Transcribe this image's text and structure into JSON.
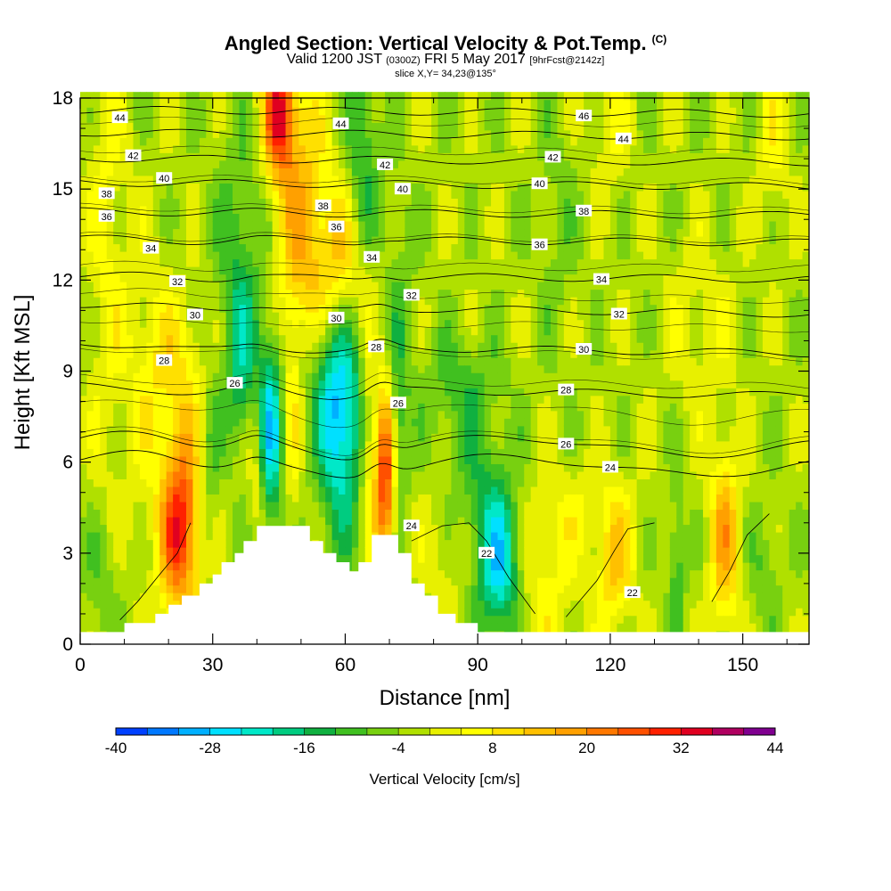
{
  "title": {
    "main": "Angled Section: Vertical Velocity & Pot.Temp.",
    "unit_tag": "(C)",
    "valid_prefix": "Valid 1200 JST",
    "valid_utc": "(0300Z)",
    "valid_date": "FRI 5 May 2017",
    "forecast": "[9hrFcst@2142z]",
    "slice": "slice X,Y= 34,23@135°"
  },
  "chart_data": {
    "type": "heatmap",
    "xlabel": "Distance [nm]",
    "ylabel": "Height [Kft MSL]",
    "xlim": [
      0,
      165
    ],
    "ylim": [
      0,
      18
    ],
    "x_ticks": [
      "0",
      "30",
      "60",
      "90",
      "120",
      "150"
    ],
    "y_ticks": [
      "0",
      "3",
      "6",
      "9",
      "12",
      "15",
      "18"
    ],
    "grid": false,
    "colorbar": {
      "title": "Vertical Velocity [cm/s]",
      "placement": "bottom",
      "tick_labels": [
        "-40",
        "-28",
        "-16",
        "-4",
        "8",
        "20",
        "32",
        "44"
      ],
      "levels": [
        -40,
        -36,
        -32,
        -28,
        -24,
        -20,
        -16,
        -12,
        -8,
        -4,
        0,
        4,
        8,
        12,
        16,
        20,
        24,
        28,
        32,
        36,
        40,
        44
      ],
      "colors": [
        "#0000ff",
        "#0040ff",
        "#0078ff",
        "#00b0ff",
        "#00e0ff",
        "#00e8c8",
        "#00cc80",
        "#10b040",
        "#40c020",
        "#78d010",
        "#b0e000",
        "#e8f000",
        "#ffff00",
        "#ffe000",
        "#ffc000",
        "#ffa000",
        "#ff7800",
        "#ff5000",
        "#ff2000",
        "#e00020",
        "#b00060",
        "#800090",
        "#500090"
      ]
    },
    "terrain_kft": [
      [
        0,
        0.4
      ],
      [
        10,
        0.4
      ],
      [
        10,
        0.7
      ],
      [
        17,
        0.7
      ],
      [
        17,
        1.0
      ],
      [
        20,
        1.0
      ],
      [
        20,
        1.3
      ],
      [
        23,
        1.3
      ],
      [
        23,
        1.6
      ],
      [
        27,
        1.6
      ],
      [
        27,
        2.0
      ],
      [
        30,
        2.0
      ],
      [
        30,
        2.3
      ],
      [
        32,
        2.3
      ],
      [
        32,
        2.7
      ],
      [
        35,
        2.7
      ],
      [
        35,
        3.0
      ],
      [
        37,
        3.0
      ],
      [
        37,
        3.4
      ],
      [
        40,
        3.4
      ],
      [
        40,
        3.9
      ],
      [
        52,
        3.9
      ],
      [
        52,
        3.4
      ],
      [
        55,
        3.4
      ],
      [
        55,
        3.0
      ],
      [
        58,
        3.0
      ],
      [
        58,
        2.7
      ],
      [
        61,
        2.7
      ],
      [
        61,
        2.4
      ],
      [
        63,
        2.4
      ],
      [
        63,
        2.7
      ],
      [
        66,
        2.7
      ],
      [
        66,
        3.6
      ],
      [
        72,
        3.6
      ],
      [
        72,
        3.0
      ],
      [
        75,
        3.0
      ],
      [
        75,
        2.0
      ],
      [
        78,
        2.0
      ],
      [
        78,
        1.6
      ],
      [
        81,
        1.6
      ],
      [
        81,
        1.0
      ],
      [
        85,
        1.0
      ],
      [
        85,
        0.7
      ],
      [
        90,
        0.7
      ],
      [
        90,
        0.4
      ],
      [
        165,
        0.4
      ]
    ],
    "velocity_features": [
      {
        "x": 23,
        "y": 4.3,
        "sx": 3.5,
        "sy": 2.6,
        "w": 24
      },
      {
        "x": 22,
        "y": 3.5,
        "sx": 2.5,
        "sy": 1.4,
        "w": 10
      },
      {
        "x": 29,
        "y": 6.0,
        "sx": 1.8,
        "sy": 2.4,
        "w": -8
      },
      {
        "x": 43,
        "y": 7.0,
        "sx": 2.0,
        "sy": 2.2,
        "w": -24
      },
      {
        "x": 40,
        "y": 6.5,
        "sx": 1.5,
        "sy": 2.2,
        "w": 10
      },
      {
        "x": 37,
        "y": 9.0,
        "sx": 3.0,
        "sy": 1.8,
        "w": -12
      },
      {
        "x": 48,
        "y": 7.5,
        "sx": 1.4,
        "sy": 2.6,
        "w": 8
      },
      {
        "x": 59,
        "y": 7.2,
        "sx": 3.5,
        "sy": 2.6,
        "w": -24
      },
      {
        "x": 56,
        "y": 9.0,
        "sx": 5.0,
        "sy": 1.8,
        "w": -10
      },
      {
        "x": 65,
        "y": 7.0,
        "sx": 1.3,
        "sy": 2.5,
        "w": 10
      },
      {
        "x": 69,
        "y": 5.6,
        "sx": 1.7,
        "sy": 2.2,
        "w": 32
      },
      {
        "x": 72,
        "y": 6.8,
        "sx": 1.5,
        "sy": 1.8,
        "w": -10
      },
      {
        "x": 45,
        "y": 17.5,
        "sx": 2.5,
        "sy": 1.5,
        "w": 32
      },
      {
        "x": 50,
        "y": 14.0,
        "sx": 4.0,
        "sy": 3.5,
        "w": 16
      },
      {
        "x": 59,
        "y": 12.2,
        "sx": 4.5,
        "sy": 2.0,
        "w": 16
      },
      {
        "x": 64,
        "y": 16.0,
        "sx": 2.5,
        "sy": 3.0,
        "w": -12
      },
      {
        "x": 36,
        "y": 12.5,
        "sx": 3.5,
        "sy": 3.0,
        "w": -10
      },
      {
        "x": 72,
        "y": 11.0,
        "sx": 2.5,
        "sy": 3.0,
        "w": -6
      },
      {
        "x": 22,
        "y": 9.5,
        "sx": 6.0,
        "sy": 1.5,
        "w": 7
      },
      {
        "x": 6,
        "y": 13.5,
        "sx": 3.0,
        "sy": 6.0,
        "w": 7
      },
      {
        "x": 15,
        "y": 8.5,
        "sx": 4.0,
        "sy": 4.0,
        "w": 5
      },
      {
        "x": 95,
        "y": 2.6,
        "sx": 3.5,
        "sy": 1.8,
        "w": -22
      },
      {
        "x": 90,
        "y": 4.8,
        "sx": 5.0,
        "sy": 2.0,
        "w": -8
      },
      {
        "x": 83,
        "y": 3.0,
        "sx": 4.0,
        "sy": 1.5,
        "w": 6
      },
      {
        "x": 105,
        "y": 2.0,
        "sx": 5.0,
        "sy": 2.0,
        "w": 8
      },
      {
        "x": 121,
        "y": 2.5,
        "sx": 3.0,
        "sy": 1.5,
        "w": 14
      },
      {
        "x": 135,
        "y": 2.5,
        "sx": 1.3,
        "sy": 2.0,
        "w": -10
      },
      {
        "x": 146,
        "y": 3.5,
        "sx": 2.5,
        "sy": 2.2,
        "w": 18
      },
      {
        "x": 155,
        "y": 2.5,
        "sx": 2.5,
        "sy": 1.5,
        "w": -6
      },
      {
        "x": 115,
        "y": 4.5,
        "sx": 8.0,
        "sy": 1.0,
        "w": 5
      },
      {
        "x": 5,
        "y": 2.0,
        "sx": 3.0,
        "sy": 1.5,
        "w": -6
      },
      {
        "x": 157,
        "y": 16.5,
        "sx": 2.5,
        "sy": 2.0,
        "w": 7
      },
      {
        "x": 120,
        "y": 17.0,
        "sx": 3.0,
        "sy": 1.5,
        "w": 6
      },
      {
        "x": 108,
        "y": 14.0,
        "sx": 3.0,
        "sy": 3.0,
        "w": -4
      },
      {
        "x": 86,
        "y": 8.5,
        "sx": 6.0,
        "sy": 1.2,
        "w": -8
      },
      {
        "x": 140,
        "y": 10.5,
        "sx": 6.0,
        "sy": 2.0,
        "w": 5
      }
    ],
    "background_velocity": -2,
    "isentropes_c": [
      {
        "value": 46,
        "base": 17.55,
        "label_x": 114
      },
      {
        "value": 44,
        "base": 16.8,
        "label_x": 123
      },
      {
        "value": 42,
        "base": 15.95,
        "label_x": 107
      },
      {
        "value": 40,
        "base": 15.15,
        "label_x": 104
      },
      {
        "value": 38,
        "base": 14.2,
        "label_x": 114
      },
      {
        "value": 36,
        "base": 13.3,
        "label_x": 104
      },
      {
        "value": 34,
        "base": 12.1,
        "label_x": 118
      },
      {
        "value": 32,
        "base": 11.05,
        "label_x": 122
      },
      {
        "value": 30,
        "base": 9.75,
        "label_x": 114
      },
      {
        "value": 28,
        "base": 8.35,
        "label_x": 110
      },
      {
        "value": 26,
        "base": 6.6,
        "label_x": 110
      },
      {
        "value": 24,
        "base": 5.95,
        "label_x": 120
      }
    ],
    "extra_labels": [
      {
        "text": "44",
        "x": 9,
        "y": 17.35
      },
      {
        "text": "42",
        "x": 12,
        "y": 16.1
      },
      {
        "text": "40",
        "x": 19,
        "y": 15.35
      },
      {
        "text": "38",
        "x": 6,
        "y": 14.85
      },
      {
        "text": "36",
        "x": 6,
        "y": 14.1
      },
      {
        "text": "34",
        "x": 16,
        "y": 13.05
      },
      {
        "text": "32",
        "x": 22,
        "y": 11.95
      },
      {
        "text": "30",
        "x": 26,
        "y": 10.85
      },
      {
        "text": "28",
        "x": 19,
        "y": 9.35
      },
      {
        "text": "26",
        "x": 35,
        "y": 8.6
      },
      {
        "text": "44",
        "x": 59,
        "y": 17.15
      },
      {
        "text": "42",
        "x": 69,
        "y": 15.8
      },
      {
        "text": "40",
        "x": 73,
        "y": 15.0
      },
      {
        "text": "38",
        "x": 55,
        "y": 14.45
      },
      {
        "text": "36",
        "x": 58,
        "y": 13.75
      },
      {
        "text": "34",
        "x": 66,
        "y": 12.75
      },
      {
        "text": "32",
        "x": 75,
        "y": 11.5
      },
      {
        "text": "30",
        "x": 58,
        "y": 10.75
      },
      {
        "text": "28",
        "x": 67,
        "y": 9.8
      },
      {
        "text": "26",
        "x": 72,
        "y": 7.95
      },
      {
        "text": "24",
        "x": 75,
        "y": 3.9
      },
      {
        "text": "22",
        "x": 92,
        "y": 3.0
      },
      {
        "text": "22",
        "x": 125,
        "y": 1.7
      }
    ],
    "low_isentropes": [
      {
        "value": 22,
        "points": [
          [
            9,
            0.8
          ],
          [
            13,
            1.4
          ],
          [
            18,
            2.3
          ],
          [
            22,
            3.0
          ],
          [
            25,
            4.0
          ]
        ]
      },
      {
        "value": 22,
        "points": [
          [
            75,
            3.4
          ],
          [
            82,
            3.9
          ],
          [
            88,
            4.0
          ],
          [
            92,
            3.4
          ],
          [
            97,
            2.2
          ],
          [
            103,
            1.0
          ]
        ]
      },
      {
        "value": 22,
        "points": [
          [
            110,
            0.9
          ],
          [
            117,
            2.1
          ],
          [
            121,
            3.1
          ],
          [
            124,
            3.8
          ],
          [
            130,
            4.0
          ]
        ]
      },
      {
        "value": 22,
        "points": [
          [
            143,
            1.4
          ],
          [
            147,
            2.4
          ],
          [
            151,
            3.6
          ],
          [
            156,
            4.3
          ]
        ]
      }
    ]
  }
}
